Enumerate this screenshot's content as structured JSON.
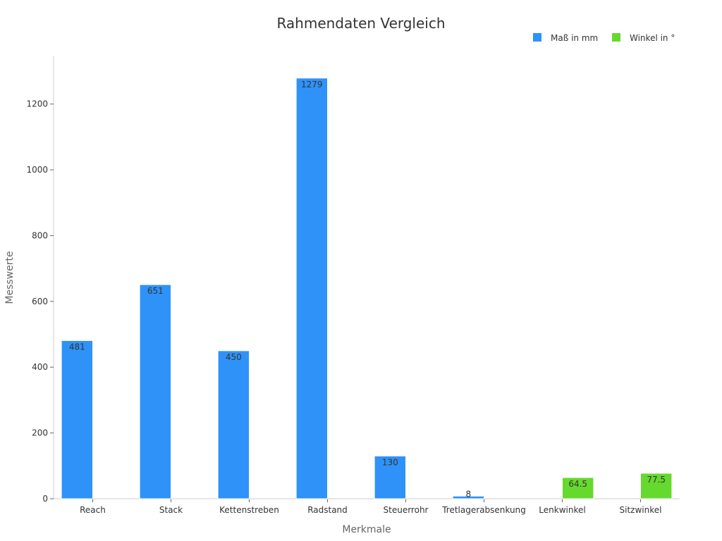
{
  "chart_data": {
    "type": "bar",
    "title": "Rahmendaten Vergleich",
    "xlabel": "Merkmale",
    "ylabel": "Messwerte",
    "categories": [
      "Reach",
      "Stack",
      "Kettenstreben",
      "Radstand",
      "Steuerrohr",
      "Tretlagerabsenkung",
      "Lenkwinkel",
      "Sitzwinkel"
    ],
    "series": [
      {
        "name": "Maß in mm",
        "color": "#2f92f8",
        "values": [
          481,
          651,
          450,
          1279,
          130,
          8,
          null,
          null
        ],
        "labels": [
          "481",
          "651",
          "450",
          "1279",
          "130",
          "8",
          null,
          null
        ]
      },
      {
        "name": "Winkel in °",
        "color": "#66d92e",
        "values": [
          null,
          null,
          null,
          null,
          null,
          null,
          64.5,
          77.5
        ],
        "labels": [
          null,
          null,
          null,
          null,
          null,
          null,
          "64.5",
          "77.5"
        ]
      }
    ],
    "ylim": [
      0,
      1345
    ],
    "yticks": [
      0,
      200,
      400,
      600,
      800,
      1000,
      1200
    ],
    "grid": false,
    "legend_position": "top-right"
  }
}
